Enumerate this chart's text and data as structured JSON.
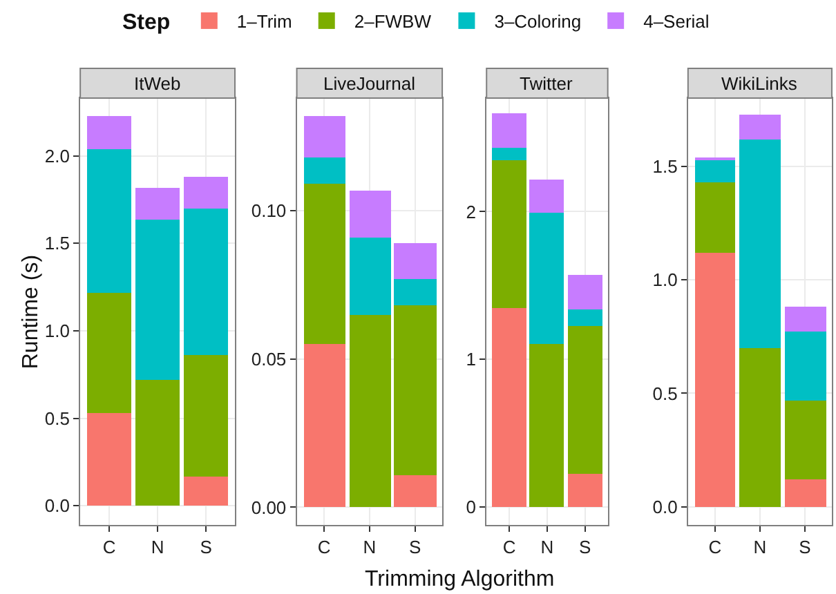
{
  "chart_data": [
    {
      "type": "bar",
      "stacked": true,
      "title": "ItWeb",
      "ylabel": "Runtime (s)",
      "xlabel": "Trimming Algorithm",
      "legend": "top",
      "legend_title": "Step",
      "grid": true,
      "categories": [
        "C",
        "N",
        "S"
      ],
      "ylim": [
        -0.11,
        2.33
      ],
      "yticks": [
        {
          "value": 0,
          "label": "0.0"
        },
        {
          "value": 0.5,
          "label": "0.5"
        },
        {
          "value": 1,
          "label": "1.0"
        },
        {
          "value": 1.5,
          "label": "1.5"
        },
        {
          "value": 2,
          "label": "2.0"
        }
      ],
      "series": [
        {
          "name": "1–Trim",
          "color": "#f8766d",
          "values": [
            0.53,
            0,
            0.17
          ]
        },
        {
          "name": "2–FWBW",
          "color": "#7cae00",
          "values": [
            0.685,
            0.72,
            0.69
          ]
        },
        {
          "name": "3–Coloring",
          "color": "#00bfc4",
          "values": [
            0.825,
            0.915,
            0.84
          ]
        },
        {
          "name": "4–Serial",
          "color": "#c77cff",
          "values": [
            0.19,
            0.185,
            0.18
          ]
        }
      ]
    },
    {
      "type": "bar",
      "stacked": true,
      "title": "LiveJournal",
      "grid": true,
      "categories": [
        "C",
        "N",
        "S"
      ],
      "ylim": [
        -0.006,
        0.138
      ],
      "yticks": [
        {
          "value": 0,
          "label": "0.00"
        },
        0.05,
        {
          "value": 0.1,
          "label": "0.10"
        }
      ],
      "series": [
        {
          "name": "1–Trim",
          "color": "#f8766d",
          "values": [
            0.055,
            0,
            0.011
          ]
        },
        {
          "name": "2–FWBW",
          "color": "#7cae00",
          "values": [
            0.054,
            0.065,
            0.057
          ]
        },
        {
          "name": "3–Coloring",
          "color": "#00bfc4",
          "values": [
            0.009,
            0.026,
            0.009
          ]
        },
        {
          "name": "4–Serial",
          "color": "#c77cff",
          "values": [
            0.014,
            0.016,
            0.012
          ]
        }
      ]
    },
    {
      "type": "bar",
      "stacked": true,
      "title": "Twitter",
      "grid": true,
      "categories": [
        "C",
        "N",
        "S"
      ],
      "ylim": [
        -0.124,
        2.77
      ],
      "yticks": [
        0,
        1,
        2
      ],
      "series": [
        {
          "name": "1–Trim",
          "color": "#f8766d",
          "values": [
            1.35,
            0,
            0.22
          ]
        },
        {
          "name": "2–FWBW",
          "color": "#7cae00",
          "values": [
            1.0,
            1.1,
            1.01
          ]
        },
        {
          "name": "3–Coloring",
          "color": "#00bfc4",
          "values": [
            0.08,
            0.89,
            0.11
          ]
        },
        {
          "name": "4–Serial",
          "color": "#c77cff",
          "values": [
            0.24,
            0.23,
            0.23
          ]
        }
      ]
    },
    {
      "type": "bar",
      "stacked": true,
      "title": "WikiLinks",
      "grid": true,
      "categories": [
        "C",
        "N",
        "S"
      ],
      "ylim": [
        -0.08,
        1.8
      ],
      "yticks": [
        {
          "value": 0,
          "label": "0.0"
        },
        0.5,
        {
          "value": 1,
          "label": "1.0"
        },
        1.5
      ],
      "series": [
        {
          "name": "1–Trim",
          "color": "#f8766d",
          "values": [
            1.12,
            0,
            0.12
          ]
        },
        {
          "name": "2–FWBW",
          "color": "#7cae00",
          "values": [
            0.31,
            0.7,
            0.35
          ]
        },
        {
          "name": "3–Coloring",
          "color": "#00bfc4",
          "values": [
            0.1,
            0.92,
            0.3
          ]
        },
        {
          "name": "4–Serial",
          "color": "#c77cff",
          "values": [
            0.01,
            0.11,
            0.11
          ]
        }
      ]
    }
  ]
}
